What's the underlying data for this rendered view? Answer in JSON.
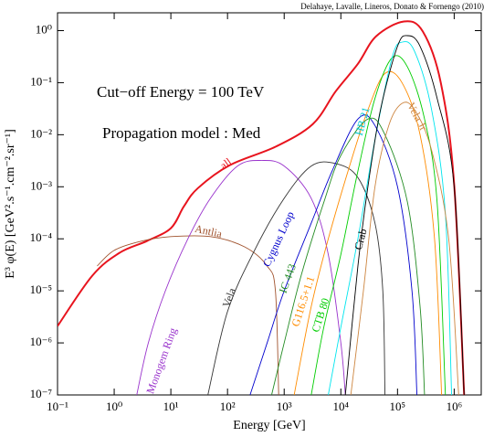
{
  "chart_data": {
    "type": "line",
    "credit": "Delahaye, Lavalle, Lineros, Donato & Fornengo (2010)",
    "annotations": [
      "Cut−off Energy = 100 TeV",
      "Propagation model : Med"
    ],
    "xlabel": "Energy [GeV]",
    "ylabel": "E³ φ(E) [GeV².s⁻¹.cm⁻².sr⁻¹]",
    "xscale": "log",
    "yscale": "log",
    "xlim": [
      0.1,
      3000000
    ],
    "ylim": [
      1e-07,
      2.2
    ],
    "xticks": [
      {
        "value": 0.1,
        "label": "10⁻¹"
      },
      {
        "value": 1,
        "label": "10⁰"
      },
      {
        "value": 10,
        "label": "10¹"
      },
      {
        "value": 100,
        "label": "10²"
      },
      {
        "value": 1000,
        "label": "10³"
      },
      {
        "value": 10000,
        "label": "10⁴"
      },
      {
        "value": 100000,
        "label": "10⁵"
      },
      {
        "value": 1000000,
        "label": "10⁶"
      }
    ],
    "yticks": [
      {
        "value": 1e-07,
        "label": "10⁻⁷"
      },
      {
        "value": 1e-06,
        "label": "10⁻⁶"
      },
      {
        "value": 1e-05,
        "label": "10⁻⁵"
      },
      {
        "value": 0.0001,
        "label": "10⁻⁴"
      },
      {
        "value": 0.001,
        "label": "10⁻³"
      },
      {
        "value": 0.01,
        "label": "10⁻²"
      },
      {
        "value": 0.1,
        "label": "10⁻¹"
      },
      {
        "value": 1,
        "label": "10⁰"
      }
    ],
    "series": [
      {
        "name": "all",
        "color": "#e8141e",
        "x": [
          0.1,
          0.41,
          1.25,
          3.8,
          10,
          17,
          30,
          110,
          710,
          3200,
          8100,
          20000,
          42000,
          130000,
          280000,
          580000,
          1000000,
          1500000
        ],
        "values": [
          2.1e-06,
          1.95e-05,
          5.4e-05,
          9.1e-05,
          0.00016,
          0.00042,
          0.00094,
          0.0026,
          0.0059,
          0.016,
          0.068,
          0.23,
          0.78,
          1.5,
          0.96,
          0.1,
          0.0011,
          1e-07
        ]
      },
      {
        "name": "Antlia",
        "color": "#a0522d",
        "x": [
          0.5,
          1,
          3,
          10,
          50,
          200,
          500,
          700,
          800
        ],
        "values": [
          3e-05,
          6e-05,
          9e-05,
          0.00011,
          0.00011,
          7e-05,
          3e-05,
          1e-05,
          1e-07
        ]
      },
      {
        "name": "Monogem Ring",
        "color": "#9932cc",
        "x": [
          2.5,
          4,
          8,
          20,
          50,
          150,
          400,
          1000,
          3000,
          6000,
          10000,
          12000
        ],
        "values": [
          1e-07,
          1e-06,
          1e-05,
          0.0001,
          0.0006,
          0.0025,
          0.0032,
          0.0025,
          0.0006,
          5e-05,
          1e-06,
          1e-07
        ]
      },
      {
        "name": "Vela",
        "color": "#333333",
        "x": [
          45,
          100,
          300,
          1000,
          3000,
          8000,
          20000,
          40000,
          55000,
          60000
        ],
        "values": [
          1e-07,
          4e-06,
          6e-05,
          0.0006,
          0.0025,
          0.0028,
          0.0015,
          0.0002,
          1e-05,
          1e-07
        ]
      },
      {
        "name": "Cygnus Loop",
        "color": "#0000cd",
        "x": [
          250,
          500,
          1000,
          3000,
          7000,
          20000,
          40000,
          100000,
          180000,
          220000
        ],
        "values": [
          1e-07,
          1e-06,
          1e-05,
          0.0002,
          0.002,
          0.02,
          0.015,
          0.001,
          1e-05,
          1e-07
        ]
      },
      {
        "name": "IC 443",
        "color": "#228b22",
        "x": [
          600,
          1000,
          2000,
          5000,
          10000,
          30000,
          60000,
          150000,
          250000,
          300000
        ],
        "values": [
          1e-07,
          1e-06,
          2e-05,
          0.0005,
          0.004,
          0.02,
          0.01,
          0.0005,
          5e-06,
          1e-07
        ]
      },
      {
        "name": "G116.5+1.1",
        "color": "#ff8c00",
        "x": [
          1500,
          3000,
          6000,
          15000,
          30000,
          60000,
          120000,
          250000,
          450000,
          600000
        ],
        "values": [
          1e-07,
          5e-06,
          0.0001,
          0.003,
          0.03,
          0.15,
          0.1,
          0.01,
          0.0001,
          1e-07
        ]
      },
      {
        "name": "CTB 80",
        "color": "#00cd00",
        "x": [
          3000,
          5000,
          10000,
          20000,
          40000,
          80000,
          150000,
          300000,
          500000,
          700000
        ],
        "values": [
          1e-07,
          2e-06,
          5e-05,
          0.002,
          0.05,
          0.3,
          0.2,
          0.02,
          0.0005,
          1e-07
        ]
      },
      {
        "name": "HB 21",
        "color": "#00e5ee",
        "x": [
          6000,
          10000,
          20000,
          40000,
          80000,
          120000,
          200000,
          400000,
          700000,
          900000
        ],
        "values": [
          1e-07,
          2e-06,
          0.0001,
          0.008,
          0.3,
          0.6,
          0.4,
          0.03,
          0.0003,
          1e-07
        ]
      },
      {
        "name": "Crab",
        "color": "#000000",
        "x": [
          12000,
          20000,
          30000,
          50000,
          100000,
          150000,
          250000,
          500000,
          1000000,
          1500000
        ],
        "values": [
          1e-07,
          3e-05,
          0.001,
          0.03,
          0.5,
          0.8,
          0.5,
          0.05,
          0.001,
          1e-07
        ]
      },
      {
        "name": "Vela Jr",
        "color": "#cd853f",
        "x": [
          15000,
          25000,
          40000,
          70000,
          120000,
          200000,
          400000,
          800000,
          1200000
        ],
        "values": [
          1e-07,
          1e-05,
          0.001,
          0.015,
          0.04,
          0.03,
          0.005,
          0.0001,
          1e-07
        ]
      }
    ]
  }
}
